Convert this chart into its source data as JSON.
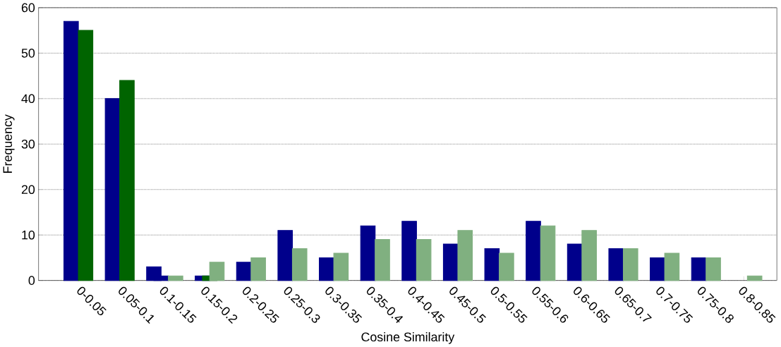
{
  "chart_data": {
    "type": "bar",
    "xlabel": "Cosine Similarity",
    "ylabel": "Frequency",
    "categories": [
      "0-0.05",
      "0.05-0.1",
      "0.1-0.15",
      "0.15-0.2",
      "0.2-0.25",
      "0.25-0.3",
      "0.3-0.35",
      "0.35-0.4",
      "0.4-0.45",
      "0.45-0.5",
      "0.5-0.55",
      "0.55-0.6",
      "0.6-0.65",
      "0.65-0.7",
      "0.7-0.75",
      "0.75-0.8",
      "0.8-0.85"
    ],
    "series": [
      {
        "color": "#00008b",
        "values": [
          57,
          40,
          3,
          0,
          0,
          0,
          0,
          0,
          0,
          0,
          0,
          0,
          0,
          0,
          0,
          0,
          0
        ]
      },
      {
        "color": "#00008b",
        "values": [
          0,
          0,
          1,
          1,
          4,
          11,
          5,
          12,
          13,
          8,
          7,
          13,
          8,
          7,
          5,
          5,
          0
        ]
      },
      {
        "color": "#006400",
        "values": [
          55,
          44,
          0,
          1,
          0,
          0,
          0,
          0,
          0,
          0,
          0,
          0,
          0,
          0,
          0,
          0,
          0
        ]
      },
      {
        "color": "#80b080",
        "values": [
          0,
          0,
          1,
          4,
          5,
          7,
          6,
          9,
          9,
          11,
          6,
          12,
          11,
          7,
          6,
          5,
          1
        ]
      }
    ],
    "ylim": [
      0,
      60
    ],
    "yticks": [
      0,
      10,
      20,
      30,
      40,
      50,
      60
    ],
    "grid": "y"
  }
}
